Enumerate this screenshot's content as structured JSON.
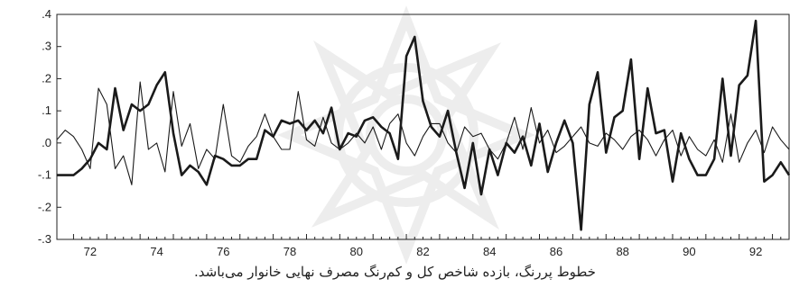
{
  "caption": "خطوط پررنگ، بازده شاخص کل و کم‌رنگ مصرف نهایی خانوار می‌باشد.",
  "chart_data": {
    "type": "line",
    "title": "",
    "xlabel": "",
    "ylabel": "",
    "x_tick_labels": [
      "72",
      "74",
      "76",
      "78",
      "80",
      "82",
      "84",
      "86",
      "88",
      "90",
      "92"
    ],
    "y_tick_labels": [
      "-.3",
      "-.2",
      "-.1",
      ".0",
      ".1",
      ".2",
      ".3",
      ".4"
    ],
    "y_ticks": [
      -0.3,
      -0.2,
      -0.1,
      0.0,
      0.1,
      0.2,
      0.3,
      0.4
    ],
    "ylim": [
      -0.3,
      0.4
    ],
    "xlim": [
      1371.5,
      1393.5
    ],
    "grid": false,
    "legend": "none",
    "series": [
      {
        "color": "#1a1a1a",
        "width": "thick",
        "x": [
          1371.5,
          1371.75,
          1372.0,
          1372.25,
          1372.5,
          1372.75,
          1373.0,
          1373.25,
          1373.5,
          1373.75,
          1374.0,
          1374.25,
          1374.5,
          1374.75,
          1375.0,
          1375.25,
          1375.5,
          1375.75,
          1376.0,
          1376.25,
          1376.5,
          1376.75,
          1377.0,
          1377.25,
          1377.5,
          1377.75,
          1378.0,
          1378.25,
          1378.5,
          1378.75,
          1379.0,
          1379.25,
          1379.5,
          1379.75,
          1380.0,
          1380.25,
          1380.5,
          1380.75,
          1381.0,
          1381.25,
          1381.5,
          1381.75,
          1382.0,
          1382.25,
          1382.5,
          1382.75,
          1383.0,
          1383.25,
          1383.5,
          1383.75,
          1384.0,
          1384.25,
          1384.5,
          1384.75,
          1385.0,
          1385.25,
          1385.5,
          1385.75,
          1386.0,
          1386.25,
          1386.5,
          1386.75,
          1387.0,
          1387.25,
          1387.5,
          1387.75,
          1388.0,
          1388.25,
          1388.5,
          1388.75,
          1389.0,
          1389.25,
          1389.5,
          1389.75,
          1390.0,
          1390.25,
          1390.5,
          1390.75,
          1391.0,
          1391.25,
          1391.5,
          1391.75,
          1392.0,
          1392.25,
          1392.5,
          1392.75,
          1393.0,
          1393.25,
          1393.5
        ],
        "values": [
          -0.1,
          -0.1,
          -0.1,
          -0.08,
          -0.05,
          0.0,
          -0.02,
          0.17,
          0.04,
          0.12,
          0.1,
          0.12,
          0.18,
          0.22,
          0.03,
          -0.1,
          -0.07,
          -0.09,
          -0.13,
          -0.04,
          -0.05,
          -0.07,
          -0.07,
          -0.05,
          -0.05,
          0.04,
          0.02,
          0.07,
          0.06,
          0.07,
          0.04,
          0.07,
          0.03,
          0.11,
          -0.02,
          0.03,
          0.02,
          0.07,
          0.08,
          0.05,
          0.03,
          -0.05,
          0.27,
          0.33,
          0.13,
          0.05,
          0.02,
          0.1,
          -0.03,
          -0.14,
          0.0,
          -0.16,
          -0.02,
          -0.1,
          0.0,
          -0.03,
          0.02,
          -0.07,
          0.06,
          -0.09,
          0.0,
          0.07,
          0.0,
          -0.27,
          0.12,
          0.22,
          -0.03,
          0.08,
          0.1,
          0.26,
          -0.05,
          0.17,
          0.03,
          0.04,
          -0.12,
          0.03,
          -0.05,
          -0.1,
          -0.1,
          -0.05,
          0.2,
          -0.04,
          0.18,
          0.21,
          0.38,
          -0.12,
          -0.1,
          -0.06,
          -0.1
        ]
      },
      {
        "color": "#1a1a1a",
        "width": "thin",
        "x": [
          1371.5,
          1371.75,
          1372.0,
          1372.25,
          1372.5,
          1372.75,
          1373.0,
          1373.25,
          1373.5,
          1373.75,
          1374.0,
          1374.25,
          1374.5,
          1374.75,
          1375.0,
          1375.25,
          1375.5,
          1375.75,
          1376.0,
          1376.25,
          1376.5,
          1376.75,
          1377.0,
          1377.25,
          1377.5,
          1377.75,
          1378.0,
          1378.25,
          1378.5,
          1378.75,
          1379.0,
          1379.25,
          1379.5,
          1379.75,
          1380.0,
          1380.25,
          1380.5,
          1380.75,
          1381.0,
          1381.25,
          1381.5,
          1381.75,
          1382.0,
          1382.25,
          1382.5,
          1382.75,
          1383.0,
          1383.25,
          1383.5,
          1383.75,
          1384.0,
          1384.25,
          1384.5,
          1384.75,
          1385.0,
          1385.25,
          1385.5,
          1385.75,
          1386.0,
          1386.25,
          1386.5,
          1386.75,
          1387.0,
          1387.25,
          1387.5,
          1387.75,
          1388.0,
          1388.25,
          1388.5,
          1388.75,
          1389.0,
          1389.25,
          1389.5,
          1389.75,
          1390.0,
          1390.25,
          1390.5,
          1390.75,
          1391.0,
          1391.25,
          1391.5,
          1391.75,
          1392.0,
          1392.25,
          1392.5,
          1392.75,
          1393.0,
          1393.25,
          1393.5
        ],
        "values": [
          0.01,
          0.04,
          0.02,
          -0.02,
          -0.08,
          0.17,
          0.12,
          -0.08,
          -0.04,
          -0.13,
          0.19,
          -0.02,
          0.0,
          -0.09,
          0.16,
          -0.01,
          0.06,
          -0.08,
          -0.02,
          -0.05,
          0.12,
          -0.04,
          -0.06,
          -0.01,
          0.02,
          0.09,
          0.02,
          -0.02,
          -0.02,
          0.16,
          0.01,
          -0.01,
          0.08,
          0.0,
          -0.02,
          0.0,
          0.03,
          0.0,
          0.05,
          -0.02,
          0.06,
          0.09,
          0.0,
          -0.04,
          0.02,
          0.06,
          0.06,
          0.0,
          -0.03,
          0.05,
          0.02,
          0.03,
          -0.02,
          -0.05,
          0.0,
          0.08,
          -0.02,
          0.11,
          0.0,
          0.04,
          -0.03,
          -0.01,
          0.02,
          0.05,
          0.0,
          -0.01,
          0.03,
          0.01,
          -0.02,
          0.02,
          0.04,
          0.01,
          -0.04,
          0.01,
          0.04,
          -0.04,
          0.02,
          -0.02,
          -0.04,
          0.01,
          -0.06,
          0.09,
          -0.06,
          0.0,
          0.04,
          -0.03,
          0.05,
          0.01,
          -0.02
        ]
      }
    ]
  }
}
